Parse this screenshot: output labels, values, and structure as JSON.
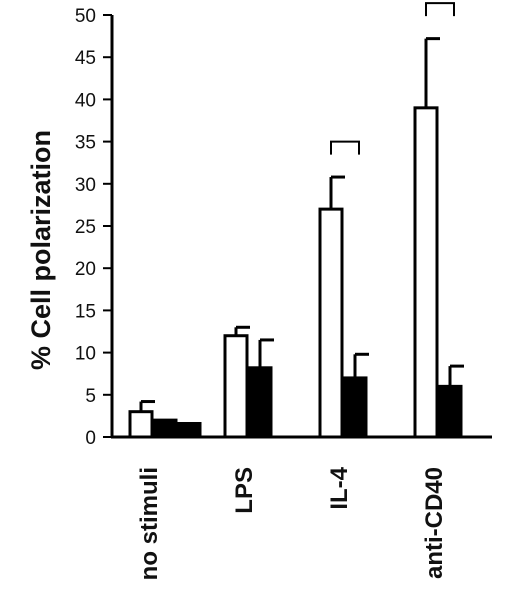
{
  "chart_data": {
    "type": "bar",
    "title": "",
    "xlabel": "",
    "ylabel": "% Cell polarization",
    "ylim": [
      0,
      50
    ],
    "yticks": [
      0,
      5,
      10,
      15,
      20,
      25,
      30,
      35,
      40,
      45,
      50
    ],
    "categories": [
      "no stimuli",
      "LPS",
      "IL-4",
      "anti-CD40"
    ],
    "series": [
      {
        "values": [
          3,
          12,
          27,
          39
        ],
        "errors": [
          1.2,
          1.0,
          3.8,
          8.2
        ],
        "color": "#ffffff"
      },
      {
        "values": [
          2,
          8.2,
          7,
          6
        ],
        "errors": [
          0,
          3.3,
          2.8,
          2.4
        ],
        "color": "#000000"
      },
      {
        "values": [
          1.6,
          null,
          null,
          null
        ],
        "errors": [
          0,
          0,
          0,
          0
        ],
        "color": "#000000"
      }
    ],
    "significance_brackets": [
      "IL-4",
      "anti-CD40"
    ],
    "grid": false,
    "legend": "none"
  }
}
